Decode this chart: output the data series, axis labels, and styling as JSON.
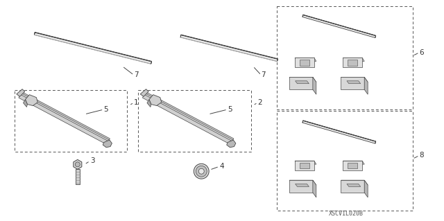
{
  "watermark": "XSCV1L020B",
  "bg": "#ffffff",
  "lc": "#444444"
}
